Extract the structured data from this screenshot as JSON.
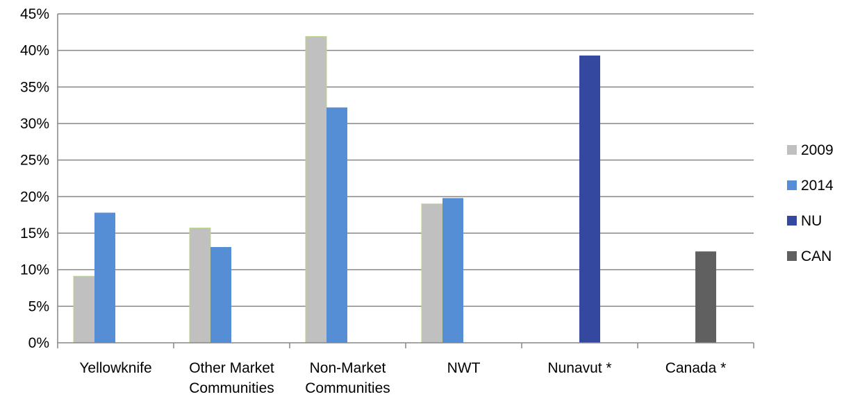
{
  "chart_data": {
    "type": "bar",
    "title": "",
    "xlabel": "",
    "ylabel": "",
    "ylim": [
      0,
      45
    ],
    "yticks": [
      0,
      5,
      10,
      15,
      20,
      25,
      30,
      35,
      40,
      45
    ],
    "ytick_labels": [
      "0%",
      "5%",
      "10%",
      "15%",
      "20%",
      "25%",
      "30%",
      "35%",
      "40%",
      "45%"
    ],
    "grid": true,
    "legend_position": "right",
    "categories": [
      {
        "lines": [
          "Yellowknife"
        ]
      },
      {
        "lines": [
          "Other Market",
          "Communities"
        ]
      },
      {
        "lines": [
          "Non-Market",
          "Communities"
        ]
      },
      {
        "lines": [
          "NWT"
        ]
      },
      {
        "lines": [
          "Nunavut *"
        ]
      },
      {
        "lines": [
          "Canada *"
        ]
      }
    ],
    "series": [
      {
        "name": "2009",
        "color": "#c0c0c0",
        "values": [
          9.1,
          15.7,
          41.9,
          19.0,
          null,
          null
        ]
      },
      {
        "name": "2014",
        "color": "#558ed5",
        "values": [
          17.8,
          13.1,
          32.2,
          19.8,
          null,
          null
        ]
      },
      {
        "name": "NU",
        "color": "#3548a0",
        "values": [
          null,
          null,
          null,
          null,
          39.3,
          null
        ]
      },
      {
        "name": "CAN",
        "color": "#606060",
        "values": [
          null,
          null,
          null,
          null,
          null,
          12.5
        ]
      }
    ]
  }
}
